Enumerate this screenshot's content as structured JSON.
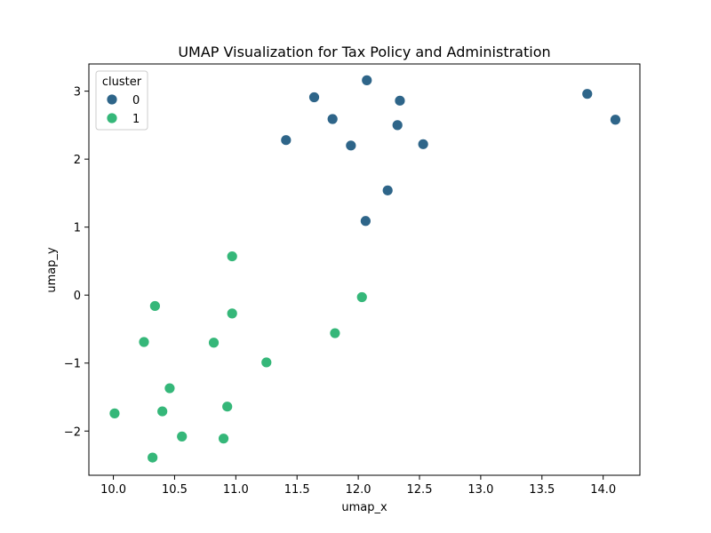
{
  "chart_data": {
    "type": "scatter",
    "title": "UMAP Visualization for Tax Policy and Administration",
    "xlabel": "umap_x",
    "ylabel": "umap_y",
    "xlim": [
      9.8,
      14.3
    ],
    "ylim": [
      -2.65,
      3.4
    ],
    "xticks": [
      10.0,
      10.5,
      11.0,
      11.5,
      12.0,
      12.5,
      13.0,
      13.5,
      14.0
    ],
    "xtick_labels": [
      "10.0",
      "10.5",
      "11.0",
      "11.5",
      "12.0",
      "12.5",
      "13.0",
      "13.5",
      "14.0"
    ],
    "yticks": [
      -2,
      -1,
      0,
      1,
      2,
      3
    ],
    "ytick_labels": [
      "−2",
      "−1",
      "0",
      "1",
      "2",
      "3"
    ],
    "grid": false,
    "legend": {
      "title": "cluster",
      "placement": "top-left",
      "entries": [
        "0",
        "1"
      ]
    },
    "series": [
      {
        "name": "0",
        "color": "#2e6589",
        "points": [
          [
            12.07,
            3.16
          ],
          [
            11.64,
            2.91
          ],
          [
            12.34,
            2.86
          ],
          [
            13.87,
            2.96
          ],
          [
            14.1,
            2.58
          ],
          [
            11.79,
            2.59
          ],
          [
            12.32,
            2.5
          ],
          [
            11.41,
            2.28
          ],
          [
            11.94,
            2.2
          ],
          [
            12.53,
            2.22
          ],
          [
            12.24,
            1.54
          ],
          [
            12.06,
            1.09
          ]
        ]
      },
      {
        "name": "1",
        "color": "#35b779",
        "points": [
          [
            10.97,
            0.57
          ],
          [
            10.34,
            -0.16
          ],
          [
            10.97,
            -0.27
          ],
          [
            12.03,
            -0.03
          ],
          [
            11.81,
            -0.56
          ],
          [
            10.25,
            -0.69
          ],
          [
            10.82,
            -0.7
          ],
          [
            11.25,
            -0.99
          ],
          [
            10.46,
            -1.37
          ],
          [
            10.4,
            -1.71
          ],
          [
            10.01,
            -1.74
          ],
          [
            10.93,
            -1.64
          ],
          [
            10.56,
            -2.08
          ],
          [
            10.9,
            -2.11
          ],
          [
            10.32,
            -2.39
          ]
        ]
      }
    ]
  }
}
